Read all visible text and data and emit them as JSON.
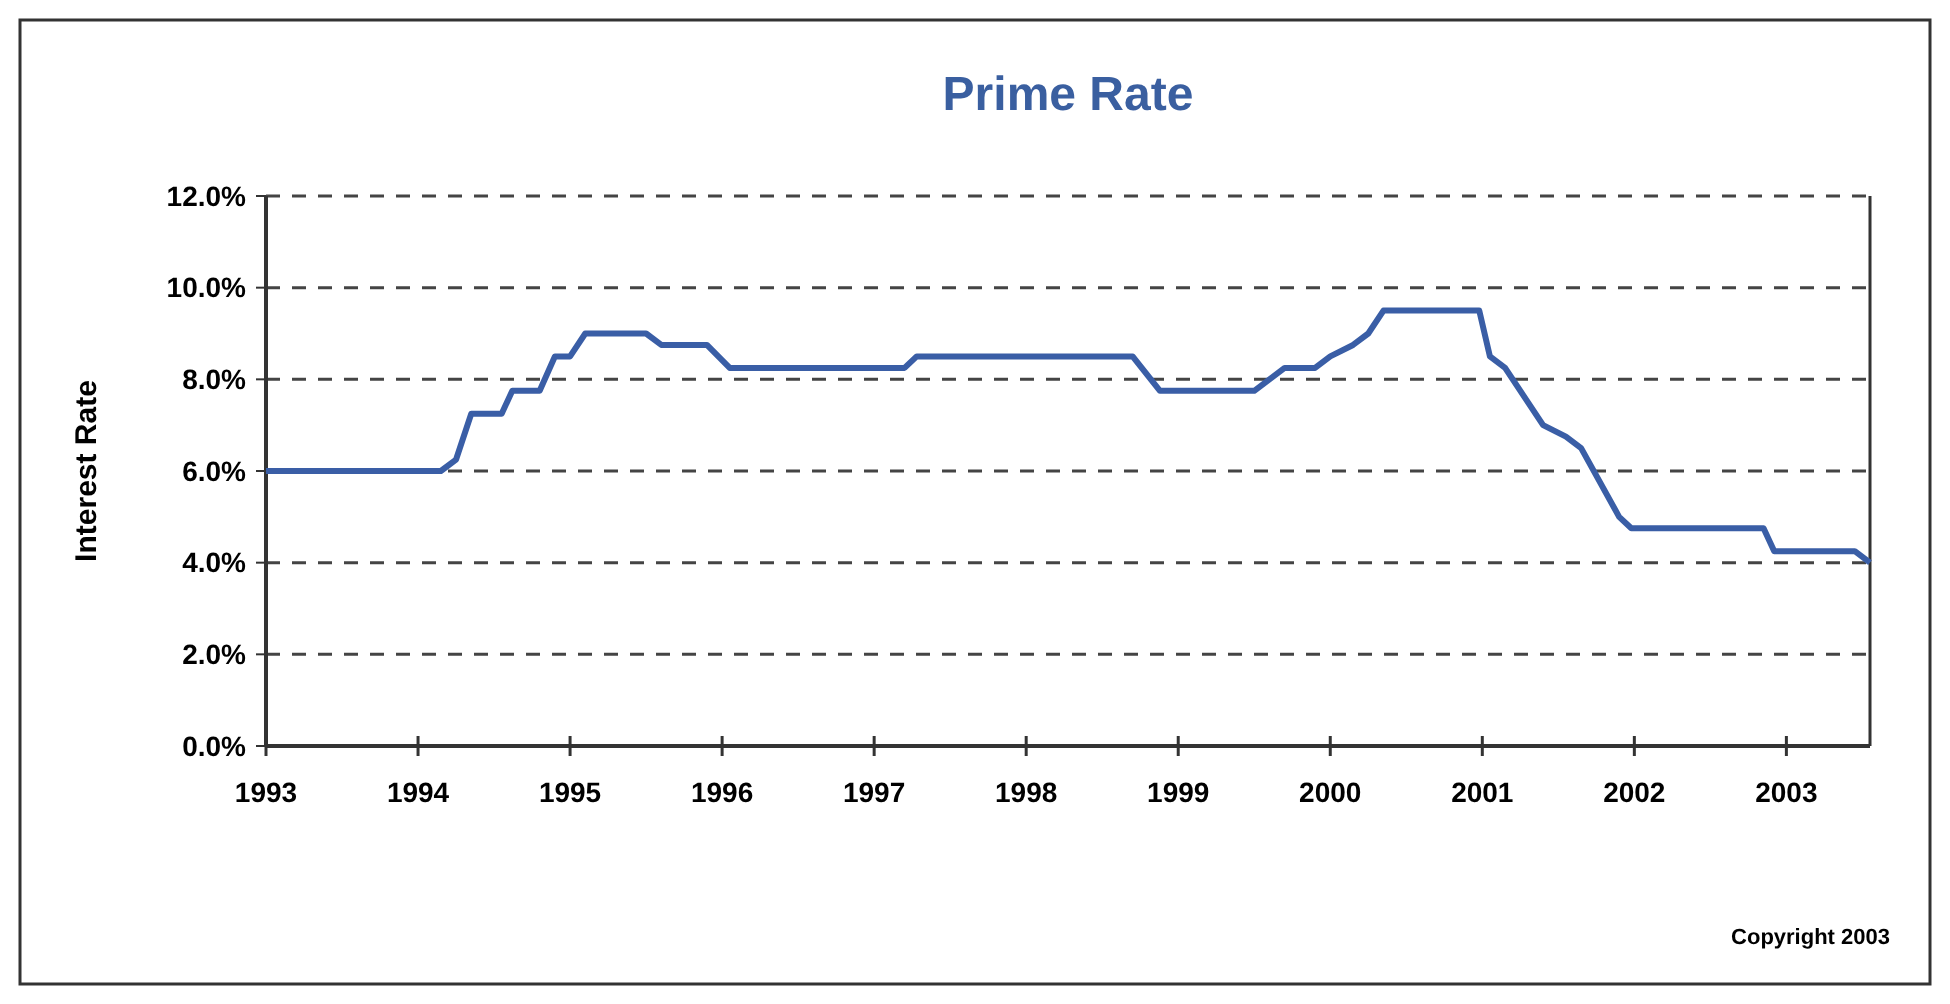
{
  "chart_data": {
    "type": "line",
    "title": "Prime Rate",
    "ylabel": "Interest Rate",
    "annotations": [
      "Copyright 2003"
    ],
    "xlim": [
      1993,
      2003.55
    ],
    "xticks": [
      {
        "value": 1993,
        "label": "1993"
      },
      {
        "value": 1994,
        "label": "1994"
      },
      {
        "value": 1995,
        "label": "1995"
      },
      {
        "value": 1996,
        "label": "1996"
      },
      {
        "value": 1997,
        "label": "1997"
      },
      {
        "value": 1998,
        "label": "1998"
      },
      {
        "value": 1999,
        "label": "1999"
      },
      {
        "value": 2000,
        "label": "2000"
      },
      {
        "value": 2001,
        "label": "2001"
      },
      {
        "value": 2002,
        "label": "2002"
      },
      {
        "value": 2003,
        "label": "2003"
      }
    ],
    "ylim": [
      0,
      12
    ],
    "yticks": [
      {
        "value": 0,
        "label": "0.0%"
      },
      {
        "value": 2,
        "label": "2.0%"
      },
      {
        "value": 4,
        "label": "4.0%"
      },
      {
        "value": 6,
        "label": "6.0%"
      },
      {
        "value": 8,
        "label": "8.0%"
      },
      {
        "value": 10,
        "label": "10.0%"
      },
      {
        "value": 12,
        "label": "12.0%"
      }
    ],
    "grid": "y",
    "line_style": "solid",
    "marker": "none",
    "series": [
      {
        "color": "#3a5ea6",
        "x": [
          1993,
          1994.15,
          1994.25,
          1994.35,
          1994.55,
          1994.62,
          1994.8,
          1994.9,
          1995.0,
          1995.1,
          1995.5,
          1995.6,
          1995.9,
          1996.05,
          1997.2,
          1997.28,
          1998.7,
          1998.88,
          1999.5,
          1999.6,
          1999.7,
          1999.9,
          2000.0,
          2000.15,
          2000.25,
          2000.35,
          2000.98,
          2001.05,
          2001.15,
          2001.4,
          2001.55,
          2001.65,
          2001.9,
          2001.98,
          2002.85,
          2002.92,
          2003.45,
          2003.55
        ],
        "values": [
          6,
          6,
          6.25,
          7.25,
          7.25,
          7.75,
          7.75,
          8.5,
          8.5,
          9.0,
          9.0,
          8.75,
          8.75,
          8.25,
          8.25,
          8.5,
          8.5,
          7.75,
          7.75,
          8.0,
          8.25,
          8.25,
          8.5,
          8.75,
          9.0,
          9.5,
          9.5,
          8.5,
          8.25,
          7.0,
          6.75,
          6.5,
          5.0,
          4.75,
          4.75,
          4.25,
          4.25,
          4.0
        ]
      }
    ]
  }
}
